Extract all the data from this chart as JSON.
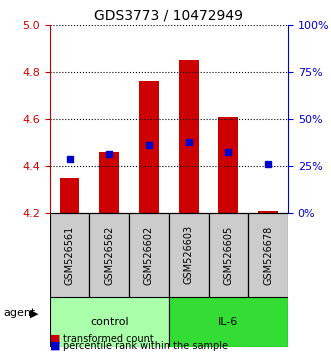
{
  "title": "GDS3773 / 10472949",
  "samples": [
    "GSM526561",
    "GSM526562",
    "GSM526602",
    "GSM526603",
    "GSM526605",
    "GSM526678"
  ],
  "groups": [
    "control",
    "control",
    "control",
    "IL-6",
    "IL-6",
    "IL-6"
  ],
  "bar_bottom": 4.2,
  "red_values": [
    4.35,
    4.46,
    4.76,
    4.85,
    4.61,
    4.21
  ],
  "blue_values": [
    4.43,
    4.45,
    4.49,
    4.5,
    4.46,
    4.41
  ],
  "ylim_left": [
    4.2,
    5.0
  ],
  "ylim_right": [
    0,
    100
  ],
  "yticks_left": [
    4.2,
    4.4,
    4.6,
    4.8,
    5.0
  ],
  "yticks_right": [
    0,
    25,
    50,
    75,
    100
  ],
  "ytick_labels_right": [
    "0%",
    "25%",
    "50%",
    "75%",
    "100%"
  ],
  "left_axis_color": "#cc0000",
  "right_axis_color": "#0000cc",
  "bar_color": "#cc0000",
  "blue_marker_color": "#0000cc",
  "control_color": "#aaffaa",
  "il6_color": "#33dd33",
  "sample_box_color": "#cccccc",
  "grid_color": "#000000",
  "bar_width": 0.5
}
